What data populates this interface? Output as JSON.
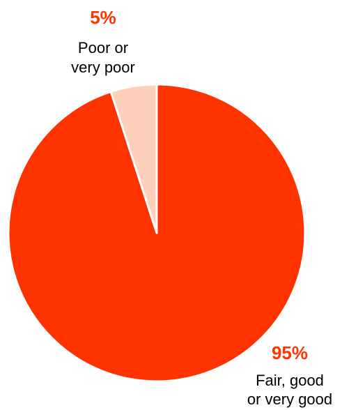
{
  "chart_data": {
    "type": "pie",
    "title": "",
    "slices": [
      {
        "label_lines": [
          "Fair, good",
          "or very good"
        ],
        "value": 95,
        "value_label": "95%",
        "color": "#ff3300",
        "label_color": "#ff3300"
      },
      {
        "label_lines": [
          "Poor or",
          "very poor"
        ],
        "value": 5,
        "value_label": "5%",
        "color": "#fdd0bc",
        "label_color": "#ff3300"
      }
    ],
    "start_angle_deg": 0,
    "direction": "clockwise",
    "legend": "none",
    "slice_border_color": "#ffffff"
  }
}
